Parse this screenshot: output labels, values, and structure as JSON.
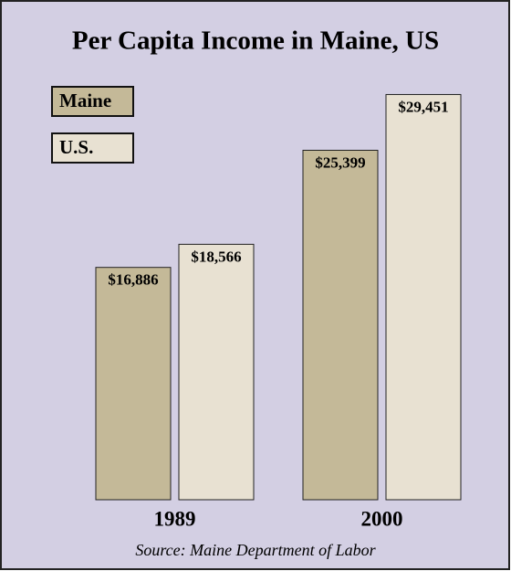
{
  "chart_data": {
    "type": "bar",
    "title": "Per Capita Income in Maine, US",
    "categories": [
      "1989",
      "2000"
    ],
    "series": [
      {
        "name": "Maine",
        "color": "#c4b998",
        "values": [
          16886,
          25399
        ],
        "value_labels": [
          "$16,886",
          "$25,399"
        ]
      },
      {
        "name": "U.S.",
        "color": "#e8e1d2",
        "values": [
          18566,
          29451
        ],
        "value_labels": [
          "$18,566",
          "$29,451"
        ]
      }
    ],
    "source": "Source: Maine Department of Labor",
    "legend": "upper left"
  }
}
